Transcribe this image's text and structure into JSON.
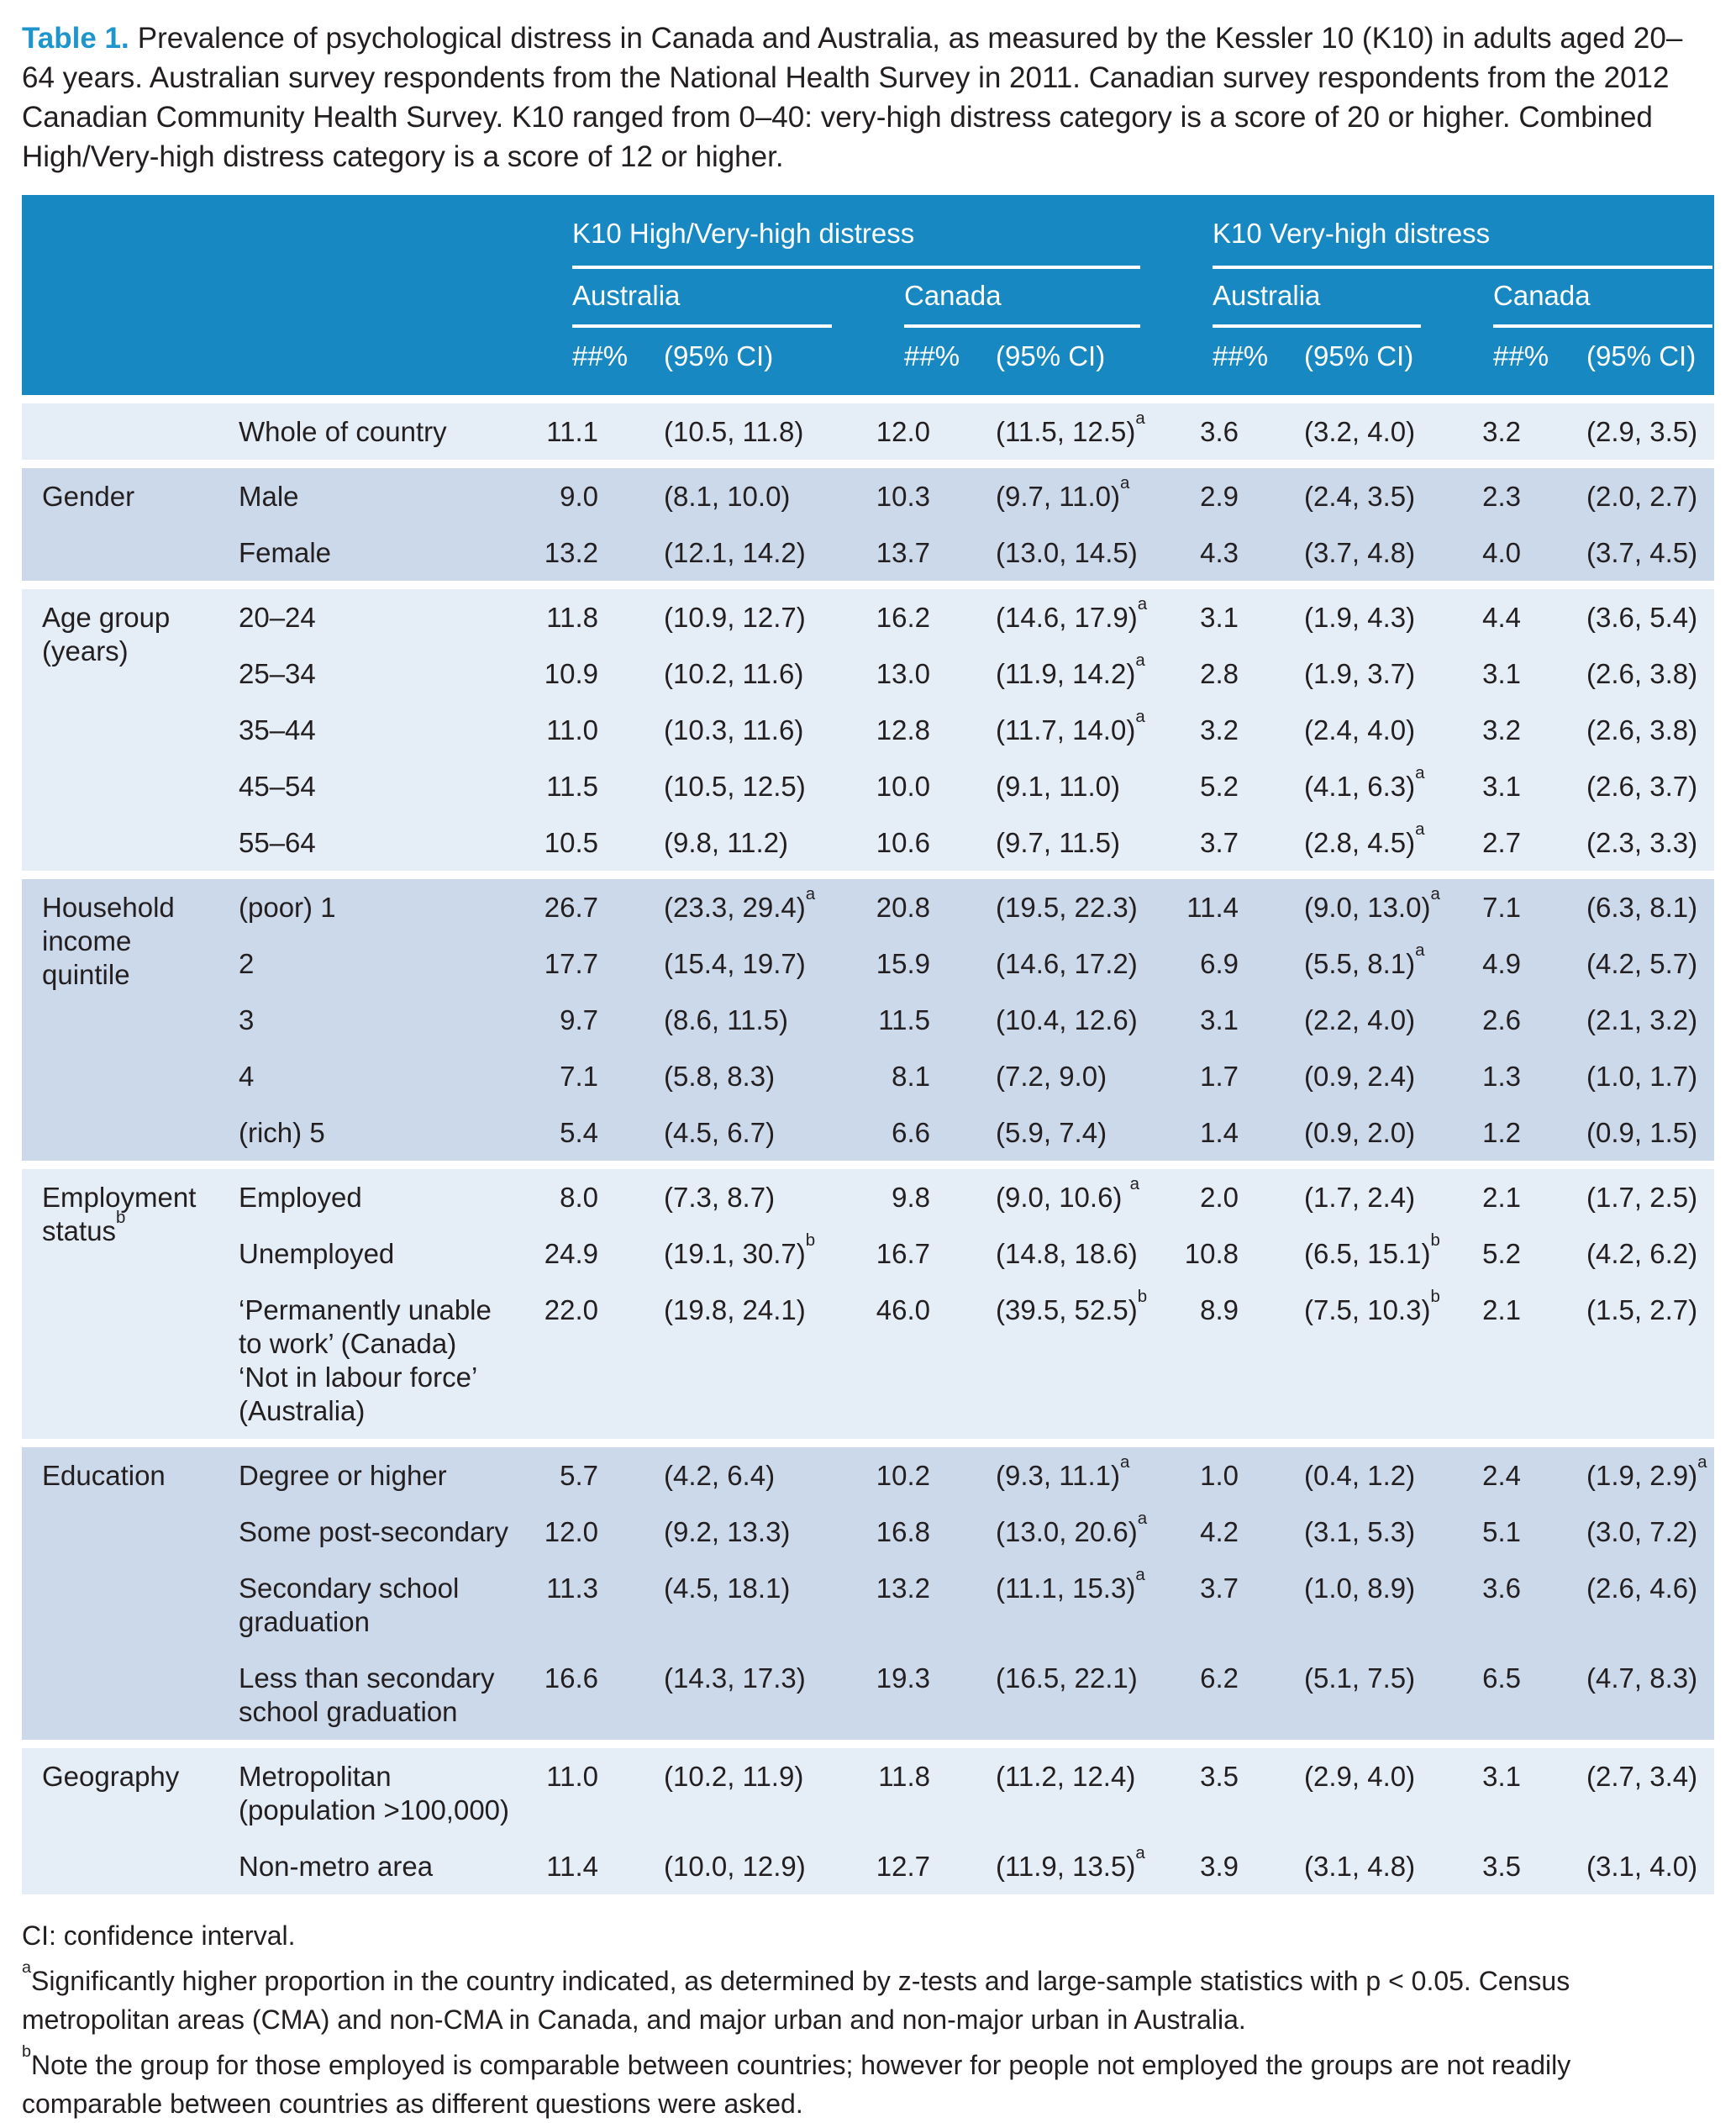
{
  "caption": {
    "label": "Table 1.",
    "text": "Prevalence of psychological distress in Canada and Australia, as measured by the Kessler 10 (K10) in adults aged 20–64 years. Australian survey respondents from the National Health Survey in 2011. Canadian survey respondents from the 2012 Canadian Community Health Survey. K10 ranged from 0–40: very-high distress category is a score of 20 or higher. Combined High/Very-high distress category is a score of 12 or higher."
  },
  "colors": {
    "header_bg": "#1788c1",
    "band_light": "#e5eef7",
    "band_dark": "#ccd9eb",
    "title_blue": "#1e95cc",
    "text": "#231f20"
  },
  "table": {
    "group_headers": [
      "K10 High/Very-high distress",
      "K10 Very-high distress"
    ],
    "country_headers": [
      "Australia",
      "Canada",
      "Australia",
      "Canada"
    ],
    "measure_headers": {
      "value": "##%",
      "ci": "(95% CI)"
    },
    "sections": [
      {
        "category": "",
        "rows": [
          {
            "label": "Whole of country",
            "cells": [
              "11.1",
              "(10.5, 11.8)",
              "12.0",
              "(11.5, 12.5)^a",
              "3.6",
              "(3.2, 4.0)",
              "3.2",
              "(2.9, 3.5)"
            ]
          }
        ]
      },
      {
        "category": "Gender",
        "rows": [
          {
            "label": "Male",
            "cells": [
              "9.0",
              "(8.1, 10.0)",
              "10.3",
              "(9.7, 11.0)^a",
              "2.9",
              "(2.4, 3.5)",
              "2.3",
              "(2.0, 2.7)"
            ]
          },
          {
            "label": "Female",
            "cells": [
              "13.2",
              "(12.1, 14.2)",
              "13.7",
              "(13.0, 14.5)",
              "4.3",
              "(3.7, 4.8)",
              "4.0",
              "(3.7, 4.5)"
            ]
          }
        ]
      },
      {
        "category": "Age group\n(years)",
        "rows": [
          {
            "label": "20–24",
            "cells": [
              "11.8",
              "(10.9, 12.7)",
              "16.2",
              "(14.6, 17.9)^a",
              "3.1",
              "(1.9, 4.3)",
              "4.4",
              "(3.6, 5.4)"
            ]
          },
          {
            "label": "25–34",
            "cells": [
              "10.9",
              "(10.2, 11.6)",
              "13.0",
              "(11.9, 14.2)^a",
              "2.8",
              "(1.9, 3.7)",
              "3.1",
              "(2.6, 3.8)"
            ]
          },
          {
            "label": "35–44",
            "cells": [
              "11.0",
              "(10.3, 11.6)",
              "12.8",
              "(11.7, 14.0)^a",
              "3.2",
              "(2.4, 4.0)",
              "3.2",
              "(2.6, 3.8)"
            ]
          },
          {
            "label": "45–54",
            "cells": [
              "11.5",
              "(10.5, 12.5)",
              "10.0",
              "(9.1, 11.0)",
              "5.2",
              "(4.1, 6.3)^a",
              "3.1",
              "(2.6, 3.7)"
            ]
          },
          {
            "label": "55–64",
            "cells": [
              "10.5",
              "(9.8, 11.2)",
              "10.6",
              "(9.7, 11.5)",
              "3.7",
              "(2.8, 4.5)^a",
              "2.7",
              "(2.3, 3.3)"
            ]
          }
        ]
      },
      {
        "category": "Household\nincome\nquintile",
        "rows": [
          {
            "label": "(poor) 1",
            "cells": [
              "26.7",
              "(23.3, 29.4)^a",
              "20.8",
              "(19.5, 22.3)",
              "11.4",
              "(9.0, 13.0)^a",
              "7.1",
              "(6.3, 8.1)"
            ]
          },
          {
            "label": "2",
            "cells": [
              "17.7",
              "(15.4, 19.7)",
              "15.9",
              "(14.6, 17.2)",
              "6.9",
              "(5.5, 8.1)^a",
              "4.9",
              "(4.2, 5.7)"
            ]
          },
          {
            "label": "3",
            "cells": [
              "9.7",
              "(8.6, 11.5)",
              "11.5",
              "(10.4, 12.6)",
              "3.1",
              "(2.2, 4.0)",
              "2.6",
              "(2.1, 3.2)"
            ]
          },
          {
            "label": "4",
            "cells": [
              "7.1",
              "(5.8, 8.3)",
              "8.1",
              "(7.2, 9.0)",
              "1.7",
              "(0.9, 2.4)",
              "1.3",
              "(1.0, 1.7)"
            ]
          },
          {
            "label": "(rich) 5",
            "cells": [
              "5.4",
              "(4.5, 6.7)",
              "6.6",
              "(5.9, 7.4)",
              "1.4",
              "(0.9, 2.0)",
              "1.2",
              "(0.9, 1.5)"
            ]
          }
        ]
      },
      {
        "category": "Employment\nstatus^b",
        "rows": [
          {
            "label": "Employed",
            "cells": [
              "8.0",
              "(7.3, 8.7)",
              "9.8",
              "(9.0, 10.6) ^a",
              "2.0",
              "(1.7, 2.4)",
              "2.1",
              "(1.7, 2.5)"
            ]
          },
          {
            "label": "Unemployed",
            "cells": [
              "24.9",
              "(19.1, 30.7)^b",
              "16.7",
              "(14.8, 18.6)",
              "10.8",
              "(6.5, 15.1)^b",
              "5.2",
              "(4.2, 6.2)"
            ]
          },
          {
            "label": "‘Permanently unable\nto work’ (Canada)\n‘Not in labour force’\n(Australia)",
            "cells": [
              "22.0",
              "(19.8, 24.1)",
              "46.0",
              "(39.5, 52.5)^b",
              "8.9",
              "(7.5, 10.3)^b",
              "2.1",
              "(1.5, 2.7)"
            ]
          }
        ]
      },
      {
        "category": "Education",
        "rows": [
          {
            "label": "Degree or higher",
            "cells": [
              "5.7",
              "(4.2, 6.4)",
              "10.2",
              "(9.3, 11.1)^a",
              "1.0",
              "(0.4, 1.2)",
              "2.4",
              "(1.9, 2.9)^a"
            ]
          },
          {
            "label": "Some post-secondary",
            "cells": [
              "12.0",
              "(9.2, 13.3)",
              "16.8",
              "(13.0, 20.6)^a",
              "4.2",
              "(3.1, 5.3)",
              "5.1",
              "(3.0, 7.2)"
            ]
          },
          {
            "label": "Secondary school\ngraduation",
            "cells": [
              "11.3",
              "(4.5, 18.1)",
              "13.2",
              "(11.1, 15.3)^a",
              "3.7",
              "(1.0, 8.9)",
              "3.6",
              "(2.6, 4.6)"
            ]
          },
          {
            "label": "Less than secondary\nschool graduation",
            "cells": [
              "16.6",
              "(14.3, 17.3)",
              "19.3",
              "(16.5, 22.1)",
              "6.2",
              "(5.1, 7.5)",
              "6.5",
              "(4.7, 8.3)"
            ]
          }
        ]
      },
      {
        "category": "Geography",
        "rows": [
          {
            "label": "Metropolitan\n(population >100,000)",
            "cells": [
              "11.0",
              "(10.2, 11.9)",
              "11.8",
              "(11.2, 12.4)",
              "3.5",
              "(2.9, 4.0)",
              "3.1",
              "(2.7, 3.4)"
            ]
          },
          {
            "label": "Non-metro area",
            "cells": [
              "11.4",
              "(10.0, 12.9)",
              "12.7",
              "(11.9, 13.5)^a",
              "3.9",
              "(3.1, 4.8)",
              "3.5",
              "(3.1, 4.0)"
            ]
          }
        ]
      }
    ]
  },
  "footnotes": [
    {
      "sup": "",
      "text": "CI: confidence interval."
    },
    {
      "sup": "a",
      "text": "Significantly higher proportion in the country indicated, as determined by z-tests and large-sample statistics with p < 0.05. Census metropolitan areas (CMA) and non-CMA in Canada, and major urban and non-major urban in Australia."
    },
    {
      "sup": "b",
      "text": "Note the group for those employed is comparable between countries; however for people not employed the groups are not readily comparable between countries as different questions were asked."
    }
  ]
}
